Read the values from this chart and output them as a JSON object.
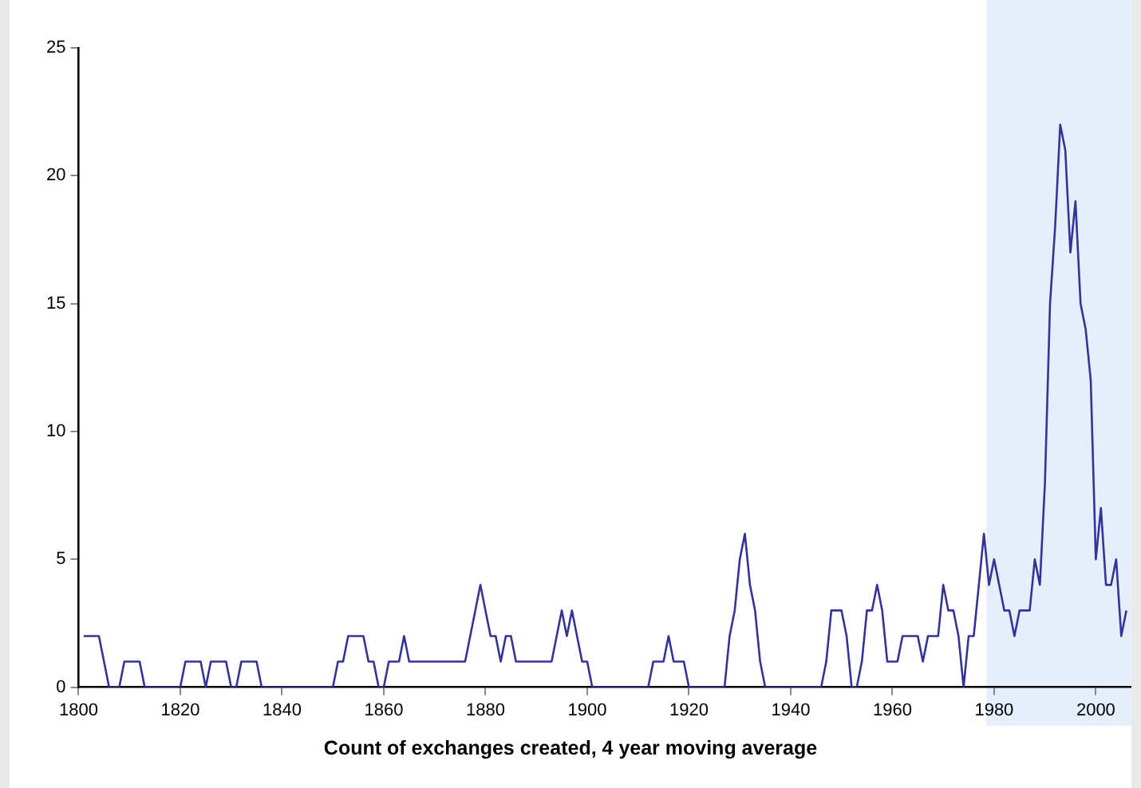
{
  "chart_data": {
    "type": "line",
    "xlabel": "Count of exchanges created, 4 year moving average",
    "x": [
      1801,
      1802,
      1803,
      1804,
      1805,
      1806,
      1807,
      1808,
      1809,
      1810,
      1811,
      1812,
      1813,
      1814,
      1815,
      1816,
      1817,
      1818,
      1819,
      1820,
      1821,
      1822,
      1823,
      1824,
      1825,
      1826,
      1827,
      1828,
      1829,
      1830,
      1831,
      1832,
      1833,
      1834,
      1835,
      1836,
      1837,
      1838,
      1839,
      1840,
      1841,
      1842,
      1843,
      1844,
      1845,
      1846,
      1847,
      1848,
      1849,
      1850,
      1851,
      1852,
      1853,
      1854,
      1855,
      1856,
      1857,
      1858,
      1859,
      1860,
      1861,
      1862,
      1863,
      1864,
      1865,
      1866,
      1867,
      1868,
      1869,
      1870,
      1871,
      1872,
      1873,
      1874,
      1875,
      1876,
      1877,
      1878,
      1879,
      1880,
      1881,
      1882,
      1883,
      1884,
      1885,
      1886,
      1887,
      1888,
      1889,
      1890,
      1891,
      1892,
      1893,
      1894,
      1895,
      1896,
      1897,
      1898,
      1899,
      1900,
      1901,
      1902,
      1903,
      1904,
      1905,
      1906,
      1907,
      1908,
      1909,
      1910,
      1911,
      1912,
      1913,
      1914,
      1915,
      1916,
      1917,
      1918,
      1919,
      1920,
      1921,
      1922,
      1923,
      1924,
      1925,
      1926,
      1927,
      1928,
      1929,
      1930,
      1931,
      1932,
      1933,
      1934,
      1935,
      1936,
      1937,
      1938,
      1939,
      1940,
      1941,
      1942,
      1943,
      1944,
      1945,
      1946,
      1947,
      1948,
      1949,
      1950,
      1951,
      1952,
      1953,
      1954,
      1955,
      1956,
      1957,
      1958,
      1959,
      1960,
      1961,
      1962,
      1963,
      1964,
      1965,
      1966,
      1967,
      1968,
      1969,
      1970,
      1971,
      1972,
      1973,
      1974,
      1975,
      1976,
      1977,
      1978,
      1979,
      1980,
      1981,
      1982,
      1983,
      1984,
      1985,
      1986,
      1987,
      1988,
      1989,
      1990,
      1991,
      1992,
      1993,
      1994,
      1995,
      1996,
      1997,
      1998,
      1999,
      2000,
      2001,
      2002,
      2003,
      2004,
      2005,
      2006
    ],
    "series": [
      {
        "color": "#333399",
        "values": [
          2,
          2,
          2,
          2,
          1,
          0,
          0,
          0,
          1,
          1,
          1,
          1,
          0,
          0,
          0,
          0,
          0,
          0,
          0,
          0,
          1,
          1,
          1,
          1,
          0,
          1,
          1,
          1,
          1,
          0,
          0,
          1,
          1,
          1,
          1,
          0,
          0,
          0,
          0,
          0,
          0,
          0,
          0,
          0,
          0,
          0,
          0,
          0,
          0,
          0,
          1,
          1,
          2,
          2,
          2,
          2,
          1,
          1,
          0,
          0,
          1,
          1,
          1,
          2,
          1,
          1,
          1,
          1,
          1,
          1,
          1,
          1,
          1,
          1,
          1,
          1,
          2,
          3,
          4,
          3,
          2,
          2,
          1,
          2,
          2,
          1,
          1,
          1,
          1,
          1,
          1,
          1,
          1,
          2,
          3,
          2,
          3,
          2,
          1,
          1,
          0,
          0,
          0,
          0,
          0,
          0,
          0,
          0,
          0,
          0,
          0,
          0,
          1,
          1,
          1,
          2,
          1,
          1,
          1,
          0,
          0,
          0,
          0,
          0,
          0,
          0,
          0,
          2,
          3,
          5,
          6,
          4,
          3,
          1,
          0,
          0,
          0,
          0,
          0,
          0,
          0,
          0,
          0,
          0,
          0,
          0,
          1,
          3,
          3,
          3,
          2,
          0,
          0,
          1,
          3,
          3,
          4,
          3,
          1,
          1,
          1,
          2,
          2,
          2,
          2,
          1,
          2,
          2,
          2,
          4,
          3,
          3,
          2,
          0,
          2,
          2,
          4,
          6,
          4,
          5,
          4,
          3,
          3,
          2,
          3,
          3,
          3,
          5,
          4,
          8,
          15,
          18,
          22,
          21,
          17,
          19,
          15,
          14,
          12,
          5,
          7,
          4,
          4,
          5,
          2,
          3
        ]
      }
    ],
    "xlim": [
      1800,
      2007
    ],
    "xticks": [
      1800,
      1820,
      1840,
      1860,
      1880,
      1900,
      1920,
      1940,
      1960,
      1980,
      2000
    ],
    "ylim": [
      0,
      25
    ],
    "yticks": [
      0,
      5,
      10,
      15,
      20,
      25
    ],
    "bands": [
      {
        "axis": "x",
        "from": 1978.5,
        "to": 2007,
        "color": "#e4effb"
      }
    ],
    "grid": false,
    "legend": false,
    "marker": "none",
    "line_style": "solid"
  }
}
